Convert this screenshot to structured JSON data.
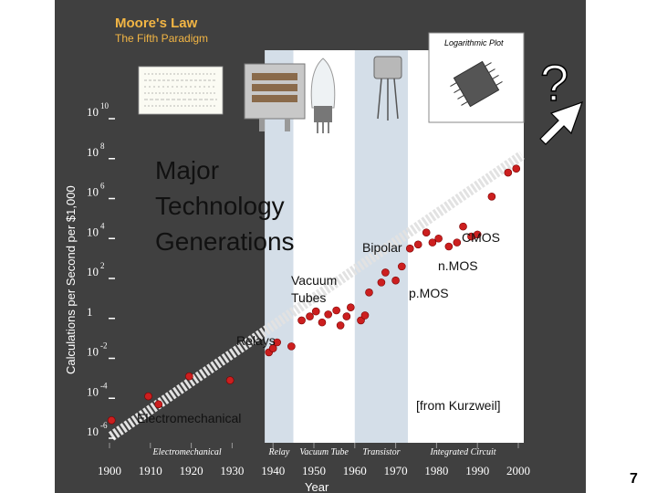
{
  "chart_data": {
    "type": "scatter",
    "title": "Moore's Law",
    "subtitle": "The Fifth Paradigm",
    "scale_note": "Logarithmic Plot",
    "xlabel": "Year",
    "ylabel": "Calculations per Second per $1,000",
    "xlim": [
      1900,
      2000
    ],
    "ylim": [
      -6,
      10
    ],
    "x_ticks": [
      "1900",
      "1910",
      "1920",
      "1930",
      "1940",
      "1950",
      "1960",
      "1970",
      "1980",
      "1990",
      "2000"
    ],
    "y_ticks": [
      {
        "base": "10",
        "exp": "10",
        "value": 10
      },
      {
        "base": "10",
        "exp": "8",
        "value": 8
      },
      {
        "base": "10",
        "exp": "6",
        "value": 6
      },
      {
        "base": "10",
        "exp": "4",
        "value": 4
      },
      {
        "base": "10",
        "exp": "2",
        "value": 2
      },
      {
        "base": "1",
        "exp": "",
        "value": 0
      },
      {
        "base": "10",
        "exp": "-2",
        "value": -2
      },
      {
        "base": "10",
        "exp": "-4",
        "value": -4
      },
      {
        "base": "10",
        "exp": "-6",
        "value": -6
      }
    ],
    "eras": [
      {
        "name": "Electromechanical",
        "start": 1900,
        "end": 1938,
        "color": "#404040"
      },
      {
        "name": "Relay",
        "start": 1938,
        "end": 1945,
        "color": "#d4dee8"
      },
      {
        "name": "Vacuum Tube",
        "start": 1945,
        "end": 1960,
        "color": "#ffffff"
      },
      {
        "name": "Transistor",
        "start": 1960,
        "end": 1973,
        "color": "#d4dee8"
      },
      {
        "name": "Integrated Circuit",
        "start": 1973,
        "end": 2000,
        "color": "#ffffff"
      }
    ],
    "points": [
      {
        "x": 1900.5,
        "y": -5.1
      },
      {
        "x": 1909.5,
        "y": -3.9
      },
      {
        "x": 1912,
        "y": -4.3
      },
      {
        "x": 1919.5,
        "y": -2.9
      },
      {
        "x": 1929.5,
        "y": -3.1
      },
      {
        "x": 1939,
        "y": -1.7
      },
      {
        "x": 1940,
        "y": -1.5
      },
      {
        "x": 1941,
        "y": -1.2
      },
      {
        "x": 1944.5,
        "y": -1.4
      },
      {
        "x": 1947,
        "y": -0.1
      },
      {
        "x": 1949,
        "y": 0.1
      },
      {
        "x": 1950.5,
        "y": 0.35
      },
      {
        "x": 1952,
        "y": -0.2
      },
      {
        "x": 1953.5,
        "y": 0.2
      },
      {
        "x": 1955.5,
        "y": 0.4
      },
      {
        "x": 1956.5,
        "y": -0.35
      },
      {
        "x": 1958,
        "y": 0.1
      },
      {
        "x": 1959,
        "y": 0.55
      },
      {
        "x": 1961.5,
        "y": -0.1
      },
      {
        "x": 1962.5,
        "y": 0.15
      },
      {
        "x": 1963.5,
        "y": 1.3
      },
      {
        "x": 1966.5,
        "y": 1.8
      },
      {
        "x": 1967.5,
        "y": 2.3
      },
      {
        "x": 1970,
        "y": 1.9
      },
      {
        "x": 1971.5,
        "y": 2.6
      },
      {
        "x": 1973.5,
        "y": 3.5
      },
      {
        "x": 1975.5,
        "y": 3.7
      },
      {
        "x": 1977.5,
        "y": 4.3
      },
      {
        "x": 1979,
        "y": 3.8
      },
      {
        "x": 1980.5,
        "y": 4.0
      },
      {
        "x": 1983,
        "y": 3.6
      },
      {
        "x": 1985,
        "y": 3.8
      },
      {
        "x": 1986.5,
        "y": 4.6
      },
      {
        "x": 1988.5,
        "y": 4.1
      },
      {
        "x": 1990,
        "y": 4.2
      },
      {
        "x": 1993.5,
        "y": 6.1
      },
      {
        "x": 1997.5,
        "y": 7.3
      },
      {
        "x": 1999.5,
        "y": 7.5
      }
    ],
    "annotations": {
      "major": "Major Technology Generations",
      "major_lines": [
        "Major",
        "Technology",
        "Generations"
      ],
      "vacuum": "Vacuum Tubes",
      "vacuum_lines": [
        "Vacuum",
        "Tubes"
      ],
      "relays": "Relays",
      "electromechanical": "Electromechanical",
      "bipolar": "Bipolar",
      "cmos": "CMOS",
      "nmos": "n.MOS",
      "pmos": "p.MOS",
      "source": "[from Kurzweil]",
      "question": "?"
    },
    "colors": {
      "panel": "#404040",
      "point": "#cc1f1f",
      "title": "#f2b544",
      "band": "#d4dee8"
    }
  },
  "slide": {
    "number": "7"
  }
}
